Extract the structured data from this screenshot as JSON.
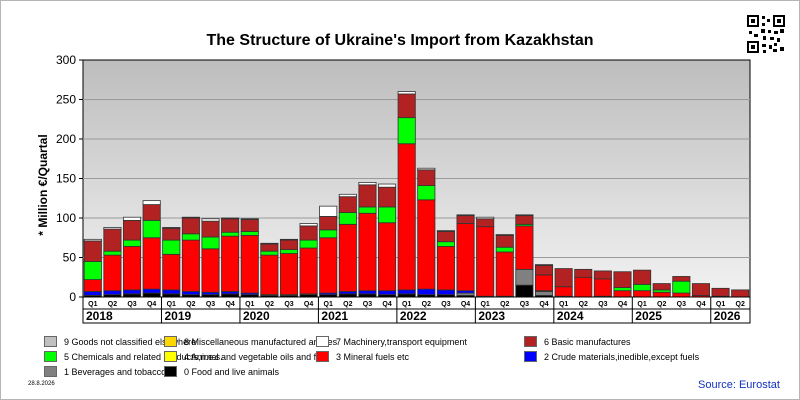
{
  "page": {
    "title": "The Structure of Ukraine's Import from Kazakhstan",
    "date": "28.8.2026",
    "source": "Source: Eurostat"
  },
  "chart_data": {
    "type": "bar",
    "stacked": true,
    "title": "The Structure of Ukraine's Import from Kazakhstan",
    "ylabel": "* Million €/Quartal",
    "ylim": [
      0,
      300
    ],
    "yticks": [
      0,
      50,
      100,
      150,
      200,
      250,
      300
    ],
    "grid": true,
    "legend_position": "bottom",
    "years": [
      "2018",
      "2019",
      "2020",
      "2021",
      "2022",
      "2023",
      "2024",
      "2025",
      "2026"
    ],
    "categories": [
      "2018 Q1",
      "2018 Q2",
      "2018 Q3",
      "2018 Q4",
      "2019 Q1",
      "2019 Q2",
      "2019 Q3",
      "2019 Q4",
      "2020 Q1",
      "2020 Q2",
      "2020 Q3",
      "2020 Q4",
      "2021 Q1",
      "2021 Q2",
      "2021 Q3",
      "2021 Q4",
      "2022 Q1",
      "2022 Q2",
      "2022 Q3",
      "2022 Q4",
      "2023 Q1",
      "2023 Q2",
      "2023 Q3",
      "2023 Q4",
      "2024 Q1",
      "2024 Q2",
      "2024 Q3",
      "2024 Q4",
      "2025 Q1",
      "2025 Q2",
      "2025 Q3",
      "2025 Q4",
      "2026 Q1",
      "2026 Q2"
    ],
    "quarter_labels": [
      "Q1",
      "Q2",
      "Q3",
      "Q4",
      "Q1",
      "Q2",
      "Q3",
      "Q4",
      "Q1",
      "Q2",
      "Q3",
      "Q4",
      "Q1",
      "Q2",
      "Q3",
      "Q4",
      "Q1",
      "Q2",
      "Q3",
      "Q4",
      "Q1",
      "Q2",
      "Q3",
      "Q4",
      "Q1",
      "Q2",
      "Q3",
      "Q4",
      "Q1",
      "Q2",
      "Q3",
      "Q4",
      "Q1",
      "Q2"
    ],
    "series": [
      {
        "name": "0 Food and live animals",
        "color": "#000000",
        "values": [
          2,
          3,
          4,
          5,
          4,
          3,
          3,
          4,
          3,
          2,
          2,
          3,
          3,
          4,
          4,
          3,
          4,
          3,
          3,
          2,
          0,
          0,
          15,
          2,
          1,
          0,
          1,
          0,
          0,
          0,
          0,
          0,
          0,
          0
        ]
      },
      {
        "name": "1 Beverages and tobacco",
        "color": "#808080",
        "values": [
          0,
          0,
          0,
          0,
          0,
          0,
          0,
          0,
          0,
          0,
          0,
          0,
          0,
          0,
          0,
          0,
          0,
          0,
          0,
          3,
          0,
          0,
          20,
          5,
          0,
          0,
          0,
          0,
          0,
          0,
          0,
          0,
          0,
          0
        ]
      },
      {
        "name": "2 Crude materials,inedible,except fuels",
        "color": "#0000ff",
        "values": [
          5,
          5,
          5,
          5,
          5,
          4,
          3,
          3,
          2,
          1,
          1,
          1,
          2,
          3,
          4,
          5,
          5,
          7,
          6,
          3,
          1,
          1,
          0,
          1,
          0,
          0,
          0,
          0,
          0,
          0,
          0,
          0,
          0,
          0
        ]
      },
      {
        "name": "3 Mineral fuels etc",
        "color": "#ff0000",
        "values": [
          15,
          45,
          55,
          65,
          45,
          65,
          55,
          70,
          73,
          50,
          52,
          58,
          70,
          85,
          98,
          86,
          185,
          113,
          55,
          85,
          88,
          56,
          55,
          20,
          12,
          25,
          22,
          8,
          8,
          6,
          5,
          2,
          1,
          0
        ]
      },
      {
        "name": "4 Animal and vegetable oils and fats",
        "color": "#ffff00",
        "values": [
          0,
          0,
          0,
          0,
          0,
          0,
          0,
          0,
          0,
          0,
          0,
          0,
          0,
          0,
          0,
          0,
          0,
          0,
          0,
          0,
          0,
          0,
          0,
          0,
          0,
          0,
          0,
          0,
          0,
          0,
          0,
          0,
          0,
          0
        ]
      },
      {
        "name": "5 Chemicals and related products,n.e.s.",
        "color": "#00ff00",
        "values": [
          23,
          5,
          8,
          22,
          18,
          8,
          15,
          5,
          5,
          5,
          5,
          10,
          10,
          15,
          8,
          20,
          33,
          18,
          6,
          0,
          0,
          6,
          2,
          0,
          0,
          0,
          0,
          4,
          8,
          3,
          15,
          0,
          0,
          0
        ]
      },
      {
        "name": "6 Basic manufactures",
        "color": "#b22222",
        "values": [
          26,
          28,
          25,
          20,
          15,
          20,
          20,
          17,
          15,
          9,
          12,
          18,
          17,
          20,
          28,
          25,
          30,
          20,
          13,
          10,
          10,
          15,
          11,
          12,
          23,
          10,
          10,
          20,
          18,
          8,
          6,
          15,
          10,
          9
        ]
      },
      {
        "name": "7 Machinery,transport equipment",
        "color": "#ffffff",
        "values": [
          2,
          2,
          4,
          5,
          1,
          1,
          3,
          1,
          1,
          1,
          1,
          3,
          13,
          3,
          3,
          4,
          3,
          2,
          1,
          1,
          2,
          1,
          1,
          1,
          0,
          0,
          0,
          0,
          0,
          0,
          0,
          0,
          0,
          0
        ]
      },
      {
        "name": "8 Miscellaneous manufactured articles",
        "color": "#ffd700",
        "values": [
          0,
          0,
          0,
          0,
          0,
          0,
          0,
          0,
          0,
          0,
          0,
          0,
          0,
          0,
          0,
          0,
          0,
          0,
          0,
          0,
          0,
          0,
          0,
          0,
          0,
          0,
          0,
          0,
          0,
          0,
          0,
          0,
          0,
          0
        ]
      },
      {
        "name": "9 Goods not classified elsewhere",
        "color": "#c0c0c0",
        "values": [
          0,
          0,
          0,
          0,
          0,
          0,
          0,
          0,
          0,
          0,
          0,
          0,
          0,
          0,
          0,
          0,
          0,
          0,
          0,
          0,
          0,
          0,
          0,
          0,
          0,
          0,
          0,
          0,
          0,
          0,
          0,
          0,
          0,
          0
        ]
      }
    ],
    "legend_order": [
      "9 Goods not classified elsewhere",
      "8 Miscellaneous manufactured articles",
      "7 Machinery,transport equipment",
      "6 Basic manufactures",
      "5 Chemicals and related products,n.e.s.",
      "4 Animal and vegetable oils and fats",
      "3 Mineral fuels etc",
      "2 Crude materials,inedible,except fuels",
      "1 Beverages and tobacco",
      "0 Food and live animals"
    ]
  }
}
